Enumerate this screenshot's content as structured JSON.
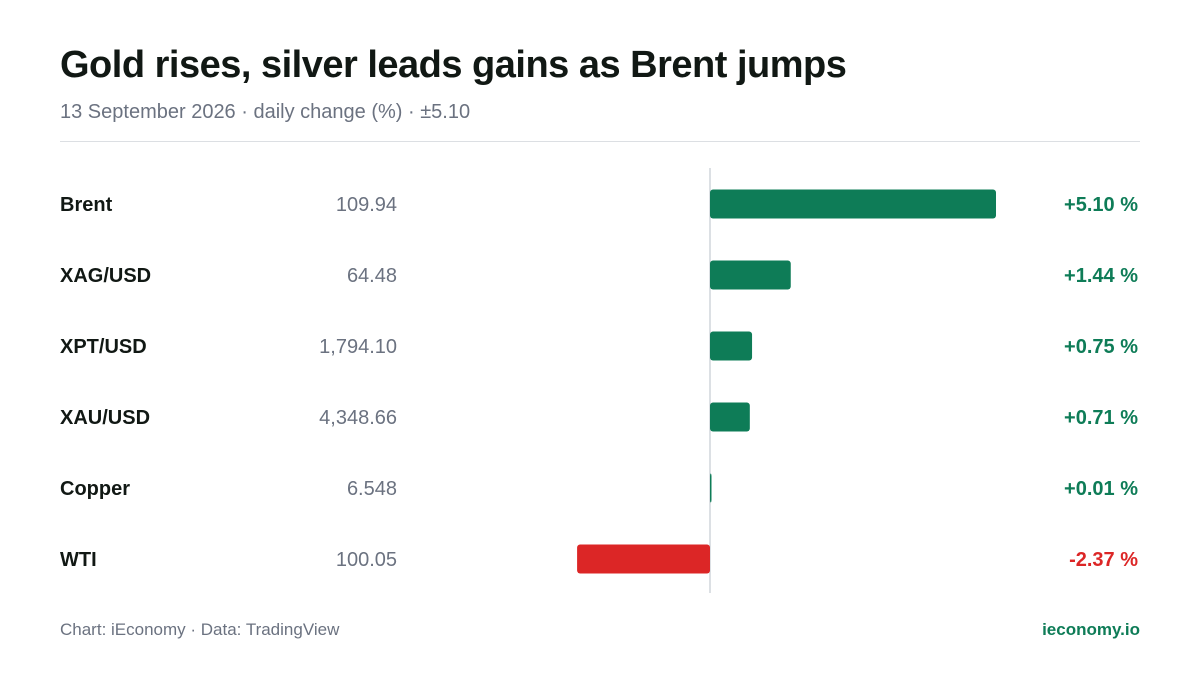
{
  "header": {
    "title": "Gold rises, silver leads gains as Brent jumps",
    "subtitle": "13 September 2026 · daily change (%) · ±5.10"
  },
  "footer": {
    "source": "Chart: iEconomy · Data: TradingView",
    "brand": "ieconomy.io"
  },
  "colors": {
    "positive": "#0e7c57",
    "negative": "#dc2626",
    "axis": "#d1d5db"
  },
  "chart_data": {
    "type": "bar",
    "orientation": "horizontal",
    "xlim": [
      -5.1,
      5.1
    ],
    "categories": [
      "Brent",
      "XAG/USD",
      "XPT/USD",
      "XAU/USD",
      "Copper",
      "WTI"
    ],
    "prices": [
      "109.94",
      "64.48",
      "1,794.10",
      "4,348.66",
      "6.548",
      "100.05"
    ],
    "values": [
      5.1,
      1.44,
      0.75,
      0.71,
      0.01,
      -2.37
    ],
    "change_labels": [
      "+5.10 %",
      "+1.44 %",
      "+0.75 %",
      "+0.71 %",
      "+0.01 %",
      "-2.37 %"
    ],
    "grid": false,
    "legend": "none"
  }
}
